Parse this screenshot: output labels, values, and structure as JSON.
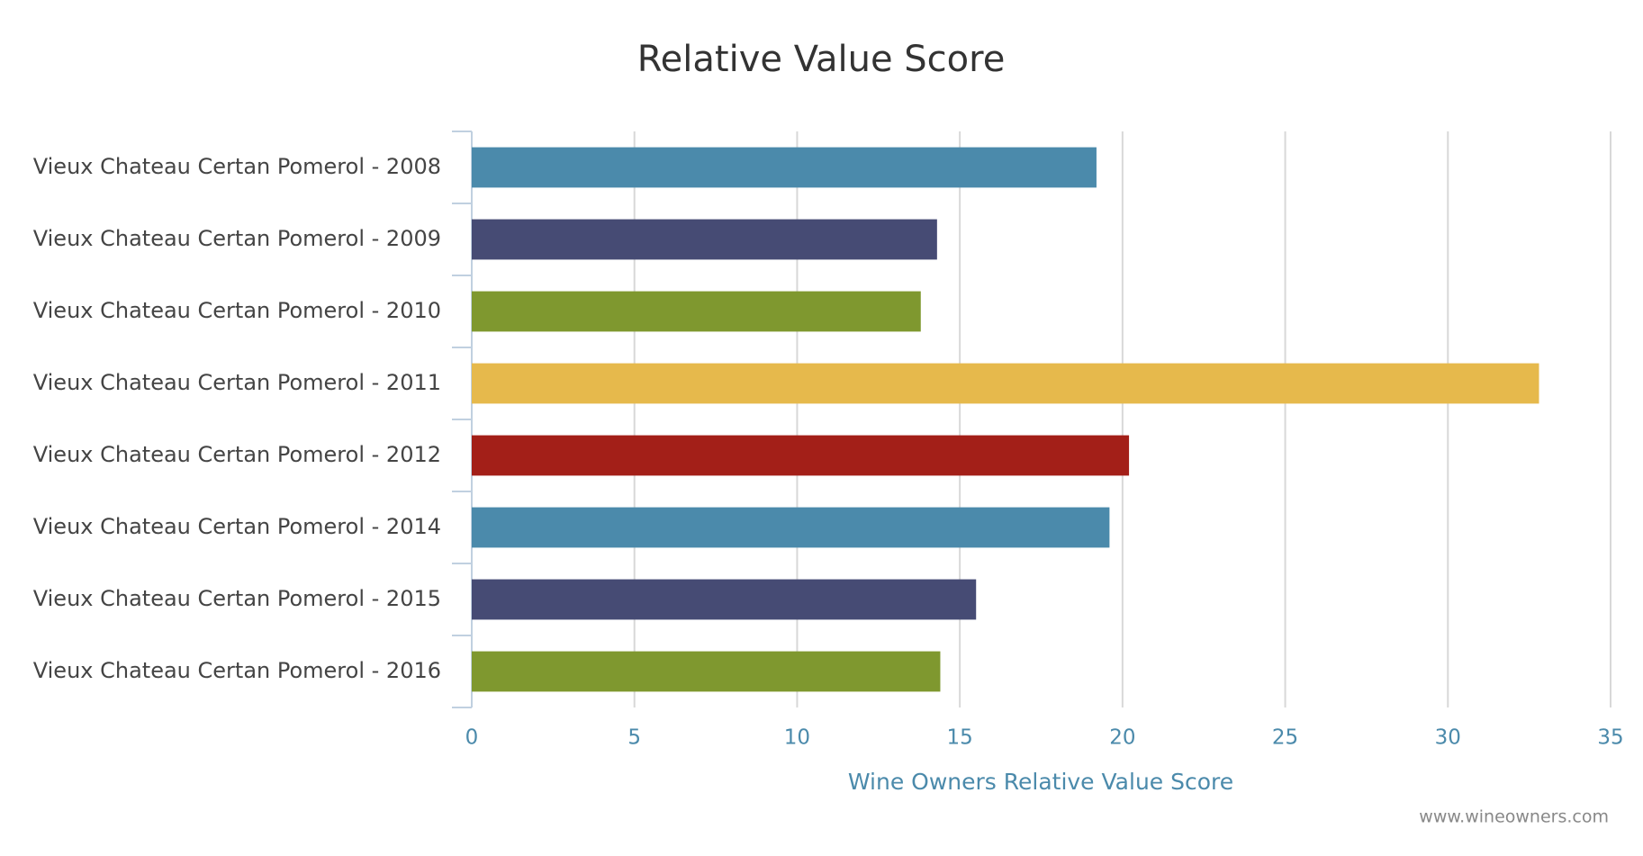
{
  "chart_data": {
    "type": "bar",
    "orientation": "horizontal",
    "title": "Relative Value Score",
    "categories": [
      "Vieux Chateau Certan Pomerol - 2008",
      "Vieux Chateau Certan Pomerol - 2009",
      "Vieux Chateau Certan Pomerol - 2010",
      "Vieux Chateau Certan Pomerol - 2011",
      "Vieux Chateau Certan Pomerol - 2012",
      "Vieux Chateau Certan Pomerol - 2014",
      "Vieux Chateau Certan Pomerol - 2015",
      "Vieux Chateau Certan Pomerol - 2016"
    ],
    "values": [
      19.2,
      14.3,
      13.8,
      32.8,
      20.2,
      19.6,
      15.5,
      14.4
    ],
    "colors": [
      "#4b8aab",
      "#464b74",
      "#7f982f",
      "#e6b94c",
      "#a31f18",
      "#4b8aab",
      "#464b74",
      "#7f982f"
    ],
    "xlabel": "Wine Owners Relative Value Score",
    "xlim": [
      0,
      35
    ],
    "xticks": [
      0,
      5,
      10,
      15,
      20,
      25,
      30,
      35
    ],
    "grid": true,
    "credit": "www.wineowners.com"
  }
}
